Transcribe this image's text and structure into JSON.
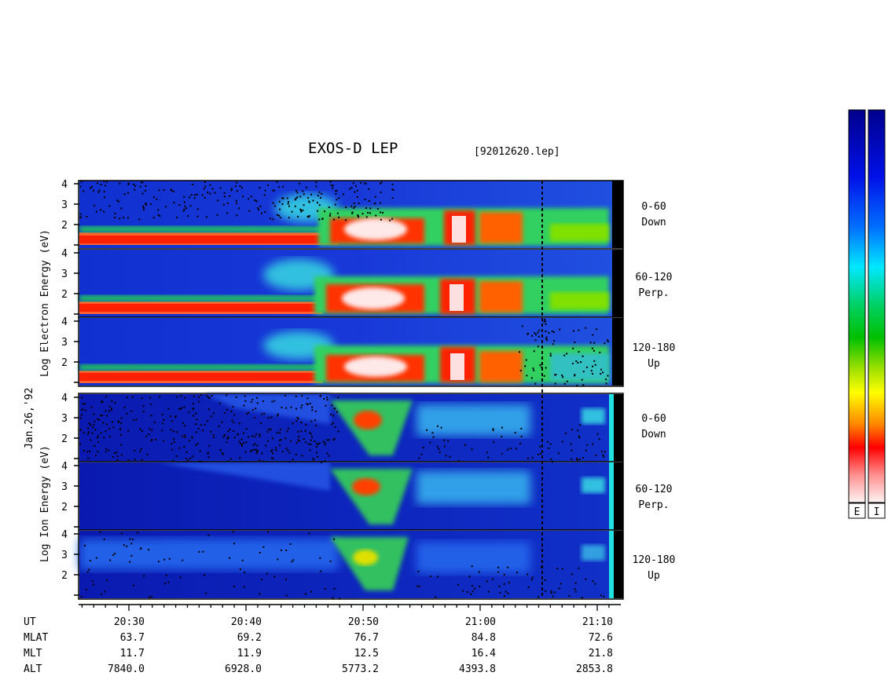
{
  "header": {
    "title": "EXOS-D LEP",
    "filename": "[92012620.lep]"
  },
  "date_label": "Jan.26,'92",
  "electron_axis_label": [
    "Log",
    "Electron",
    "Energy",
    "(eV)"
  ],
  "ion_axis_label": [
    "Log",
    "Ion",
    "Energy",
    "(eV)"
  ],
  "panels": [
    {
      "pitch": "0-60",
      "dir": "Down"
    },
    {
      "pitch": "60-120",
      "dir": "Perp."
    },
    {
      "pitch": "120-180",
      "dir": "Up"
    },
    {
      "pitch": "0-60",
      "dir": "Down"
    },
    {
      "pitch": "60-120",
      "dir": "Perp."
    },
    {
      "pitch": "120-180",
      "dir": "Up"
    }
  ],
  "colorbar": {
    "labels": [
      "E",
      "I"
    ]
  },
  "chart_data": {
    "type": "heatmap",
    "title": "EXOS-D LEP",
    "y_ticks": [
      "1",
      "2",
      "3",
      "4"
    ],
    "ylim": [
      1,
      4
    ],
    "y_scale": "log energy (eV)",
    "x_ticks": [
      "20:30",
      "20:40",
      "20:50",
      "21:00",
      "21:10"
    ],
    "ephemeris": [
      {
        "name": "UT",
        "values": [
          "20:30",
          "20:40",
          "20:50",
          "21:00",
          "21:10"
        ]
      },
      {
        "name": "MLAT",
        "values": [
          "63.7",
          "69.2",
          "76.7",
          "84.8",
          "72.6"
        ]
      },
      {
        "name": "MLT",
        "values": [
          "11.7",
          "11.9",
          "12.5",
          "16.4",
          "21.8"
        ]
      },
      {
        "name": "ALT",
        "values": [
          "7840.0",
          "6928.0",
          "5773.2",
          "4393.8",
          "2853.8"
        ]
      }
    ]
  }
}
